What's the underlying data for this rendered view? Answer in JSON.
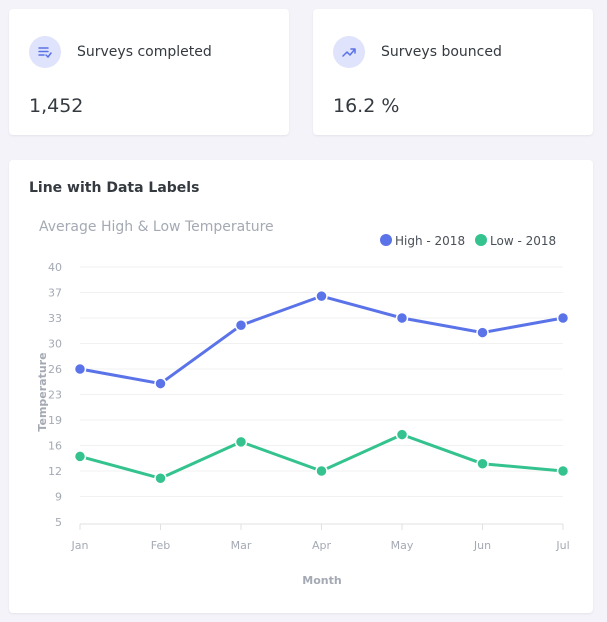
{
  "stats": [
    {
      "label": "Surveys completed",
      "value": "1,452",
      "icon": "list-check-icon"
    },
    {
      "label": "Surveys bounced",
      "value": "16.2 %",
      "icon": "trending-up-icon"
    }
  ],
  "chart_card": {
    "title": "Line with Data Labels"
  },
  "chart_data": {
    "type": "line",
    "title": "Average High & Low Temperature",
    "xlabel": "Month",
    "ylabel": "Temperature",
    "categories": [
      "Jan",
      "Feb",
      "Mar",
      "Apr",
      "May",
      "Jun",
      "Jul"
    ],
    "yticks": [
      "5",
      "9",
      "12",
      "16",
      "19",
      "23",
      "26",
      "30",
      "33",
      "37",
      "40"
    ],
    "ylim": [
      5,
      40
    ],
    "legend": "top-right",
    "series": [
      {
        "name": "High - 2018",
        "color": "#5b73e8",
        "values": [
          26,
          24,
          32,
          36,
          33,
          31,
          33
        ]
      },
      {
        "name": "Low - 2018",
        "color": "#34c38f",
        "values": [
          14,
          11,
          16,
          12,
          17,
          13,
          12
        ]
      }
    ]
  }
}
